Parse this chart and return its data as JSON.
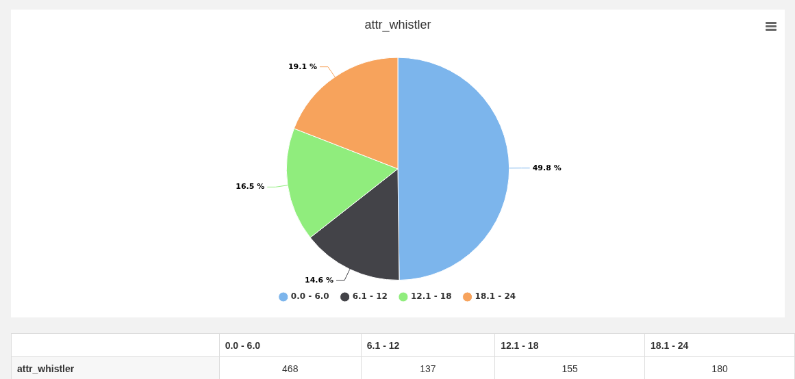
{
  "chart_data": {
    "type": "pie",
    "title": "attr_whistler",
    "categories": [
      "0.0 - 6.0",
      "6.1 - 12",
      "12.1 - 18",
      "18.1 - 24"
    ],
    "series": [
      {
        "name": "attr_whistler",
        "values": [
          49.8,
          14.6,
          16.5,
          19.1
        ],
        "value_labels": [
          "49.8 %",
          "14.6 %",
          "16.5 %",
          "19.1 %"
        ]
      }
    ],
    "colors": [
      "#7cb5ec",
      "#434348",
      "#90ed7d",
      "#f7a35c"
    ],
    "legend": "bottom",
    "annotations": [
      "468",
      "137",
      "155",
      "180"
    ]
  }
}
